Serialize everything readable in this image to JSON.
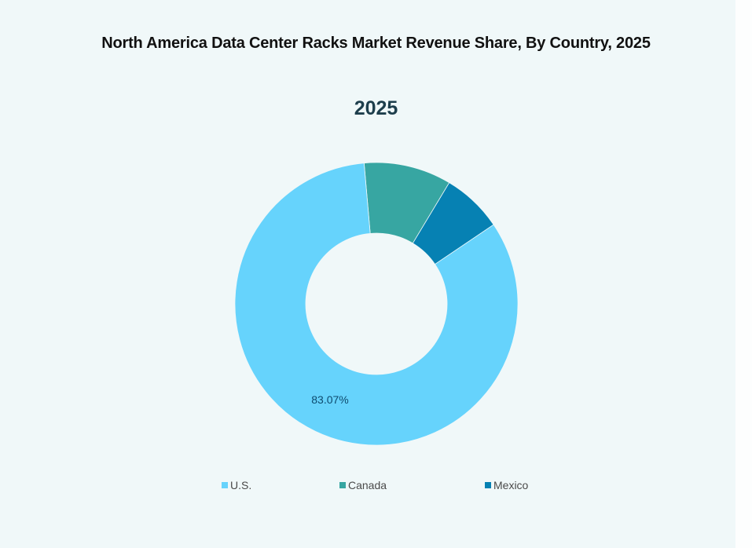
{
  "chart_data": {
    "type": "pie",
    "variant": "donut",
    "title": "North America Data Center Racks Market Revenue Share, By Country, 2025",
    "subtitle": "2025",
    "categories": [
      "U.S.",
      "Canada",
      "Mexico"
    ],
    "values": [
      83.07,
      10.0,
      6.93
    ],
    "colors": [
      "#66d3fc",
      "#37a6a2",
      "#0681b3"
    ],
    "data_labels": [
      {
        "category": "U.S.",
        "text": "83.07%"
      }
    ],
    "legend_position": "bottom",
    "start_angle_deg": -5
  },
  "title": "North America Data Center Racks Market Revenue Share, By Country, 2025",
  "subtitle": "2025",
  "labels": {
    "us": "83.07%"
  },
  "legend": [
    {
      "label": "U.S.",
      "color": "#66d3fc"
    },
    {
      "label": "Canada",
      "color": "#37a6a2"
    },
    {
      "label": "Mexico",
      "color": "#0681b3"
    }
  ]
}
